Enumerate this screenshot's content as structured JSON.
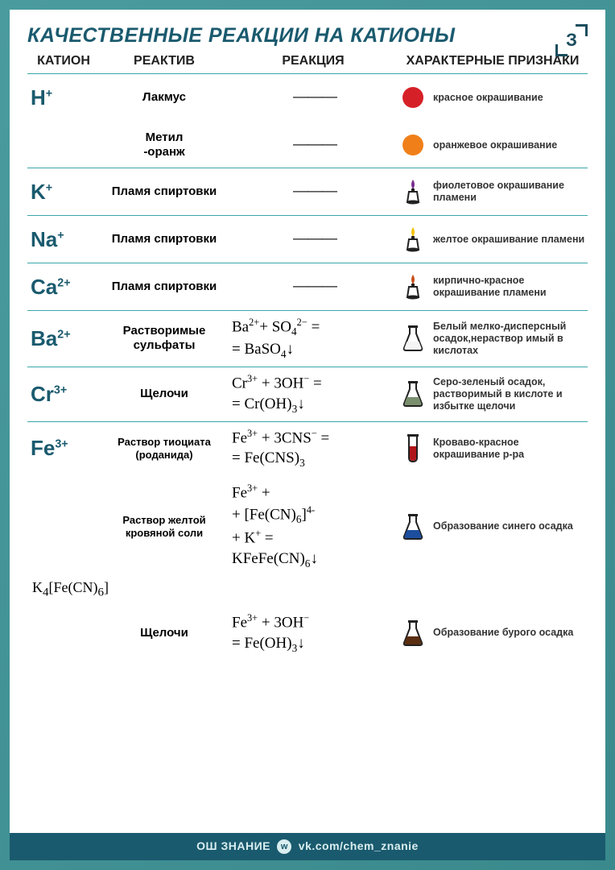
{
  "title": "КАЧЕСТВЕННЫЕ РЕАКЦИИ НА КАТИОНЫ",
  "corner": "З",
  "headers": {
    "c1": "КАТИОН",
    "c2": "РЕАКТИВ",
    "c3": "РЕАКЦИЯ",
    "c4": "ХАРАКТЕРНЫЕ ПРИЗНАКИ"
  },
  "colors": {
    "red": "#d62027",
    "orange": "#f07f1a",
    "violet": "#7b2d8e",
    "yellow": "#f2c40f",
    "brick": "#c94f1f",
    "white": "#f5f5f5",
    "greygreen": "#7a8f6e",
    "bloodred": "#b0151a",
    "blue": "#1d4e9e",
    "brown": "#5a2f12",
    "outline": "#212121"
  },
  "rows": [
    {
      "cation": "H",
      "charge": "+",
      "sub": [
        {
          "reagent": "Лакмус",
          "reaction_dash": "———",
          "icon": {
            "type": "circle",
            "color": "#d62027"
          },
          "trait": "красное окрашивание"
        },
        {
          "reagent": "Метил -оранж",
          "reaction_dash": "———",
          "icon": {
            "type": "circle",
            "color": "#f07f1a"
          },
          "trait": "оранжевое окрашивание"
        }
      ]
    },
    {
      "cation": "K",
      "charge": "+",
      "sub": [
        {
          "reagent": "Пламя спиртовки",
          "reaction_dash": "———",
          "icon": {
            "type": "lamp",
            "color": "#7b2d8e"
          },
          "trait": "фиолетовое окрашивание пламени"
        }
      ]
    },
    {
      "cation": "Na",
      "charge": "+",
      "sub": [
        {
          "reagent": "Пламя спиртовки",
          "reaction_dash": "———",
          "icon": {
            "type": "lamp",
            "color": "#f2c40f"
          },
          "trait": "желтое окрашивание пламени"
        }
      ]
    },
    {
      "cation": "Ca",
      "charge": "2+",
      "sub": [
        {
          "reagent": "Пламя спиртовки",
          "reaction_dash": "———",
          "icon": {
            "type": "lamp",
            "color": "#c94f1f"
          },
          "trait": "кирпично-красное окрашивание пламени"
        }
      ]
    },
    {
      "cation": "Ba",
      "charge": "2+",
      "sub": [
        {
          "reagent": "Растворимые сульфаты",
          "reaction_html": "Ba<sup>2+</sup>+ SO<sub>4</sub><sup>2−</sup> =<br>= BaSO<sub>4</sub>↓",
          "icon": {
            "type": "flask",
            "color": "#f5f5f5"
          },
          "trait": "Белый мелко-дисперсный осадок,нераствор имый в кислотах"
        }
      ]
    },
    {
      "cation": "Cr",
      "charge": "3+",
      "sub": [
        {
          "reagent": "Щелочи",
          "reaction_html": "Cr<sup>3+</sup> + 3OH<sup>−</sup> =<br>= Cr(OH)<sub>3</sub>↓",
          "icon": {
            "type": "flask",
            "color": "#7a8f6e"
          },
          "trait": "Серо-зеленый осадок, растворимый в кислоте и избытке щелочи"
        }
      ]
    },
    {
      "cation": "Fe",
      "charge": "3+",
      "sub": [
        {
          "reagent": "Раствор тиоциата (роданида)",
          "reaction_html": "Fe<sup>3+</sup> + 3CNS<sup>−</sup> =<br>= Fe(CNS)<sub>3</sub>",
          "icon": {
            "type": "tube",
            "color": "#b0151a"
          },
          "trait": "Кроваво-красное окрашивание р-ра"
        },
        {
          "reagent": "Раствор желтой кровяной соли",
          "reaction_html": "Fe<sup>3+</sup> +<br>+ [Fe(CN)<sub>6</sub>]<sup>4-</sup><br>+ K<sup>+</sup> =<br>KFeFe(CN)<sub>6</sub>↓",
          "icon": {
            "type": "flask",
            "color": "#1d4e9e"
          },
          "trait": "Образование синего осадка",
          "extra_below": "K<sub>4</sub>[Fe(CN)<sub>6</sub>]"
        },
        {
          "reagent": "Щелочи",
          "reaction_html": "Fe<sup>3+</sup> + 3OH<sup>−</sup><br>= Fe(OH)<sub>3</sub>↓",
          "icon": {
            "type": "flask",
            "color": "#5a2f12"
          },
          "trait": "Образование бурого осадка"
        }
      ]
    }
  ],
  "footer": {
    "school": "ОШ ЗНАНИЕ",
    "link": "vk.com/chem_znanie"
  }
}
